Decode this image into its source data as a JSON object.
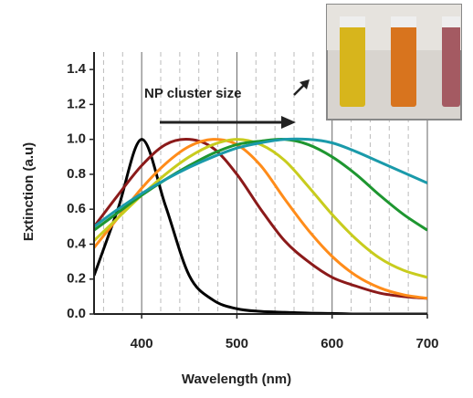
{
  "chart_data": {
    "type": "line",
    "xlabel": "Wavelength (nm)",
    "ylabel": "Extinction (a.u)",
    "annotation": "NP cluster size",
    "x": [
      350,
      375,
      400,
      425,
      450,
      475,
      500,
      525,
      550,
      575,
      600,
      625,
      650,
      675,
      700
    ],
    "series": [
      {
        "color": "#000000",
        "values": [
          0.22,
          0.6,
          1.0,
          0.62,
          0.22,
          0.08,
          0.03,
          0.015,
          0.01,
          0.005,
          0.003,
          0,
          0,
          0,
          0
        ]
      },
      {
        "color": "#8b1a1a",
        "values": [
          0.5,
          0.68,
          0.85,
          0.97,
          1.0,
          0.95,
          0.8,
          0.6,
          0.42,
          0.3,
          0.21,
          0.16,
          0.12,
          0.1,
          0.09
        ]
      },
      {
        "color": "#ff8c1a",
        "values": [
          0.38,
          0.55,
          0.72,
          0.86,
          0.96,
          1.0,
          0.97,
          0.85,
          0.66,
          0.48,
          0.33,
          0.22,
          0.15,
          0.11,
          0.09
        ]
      },
      {
        "color": "#c8cc1e",
        "values": [
          0.42,
          0.55,
          0.68,
          0.8,
          0.9,
          0.97,
          1.0,
          0.97,
          0.88,
          0.73,
          0.57,
          0.43,
          0.32,
          0.25,
          0.21
        ]
      },
      {
        "color": "#1e9630",
        "values": [
          0.48,
          0.58,
          0.68,
          0.77,
          0.85,
          0.92,
          0.97,
          0.99,
          1.0,
          0.97,
          0.9,
          0.8,
          0.68,
          0.57,
          0.48
        ]
      },
      {
        "color": "#1a9aaa",
        "values": [
          0.5,
          0.6,
          0.69,
          0.77,
          0.84,
          0.9,
          0.95,
          0.98,
          1.0,
          1.0,
          0.98,
          0.93,
          0.87,
          0.81,
          0.75
        ]
      }
    ],
    "xlim": [
      350,
      700
    ],
    "ylim": [
      0,
      1.5
    ],
    "xticks": [
      400,
      500,
      600,
      700
    ],
    "xminor": [
      360,
      380,
      420,
      440,
      460,
      480,
      520,
      540,
      560,
      580,
      620,
      640,
      660,
      680
    ],
    "yticks": [
      {
        "value": 0,
        "label": "0.0"
      },
      {
        "value": 0.2,
        "label": "0.2"
      },
      {
        "value": 0.4,
        "label": "0.4"
      },
      {
        "value": 0.6,
        "label": "0.6"
      },
      {
        "value": 0.8,
        "label": "0.8"
      },
      {
        "value": 1.0,
        "label": "1.0"
      },
      {
        "value": 1.2,
        "label": "1.2"
      },
      {
        "value": 1.4,
        "label": "1.4"
      }
    ],
    "grid": true
  }
}
